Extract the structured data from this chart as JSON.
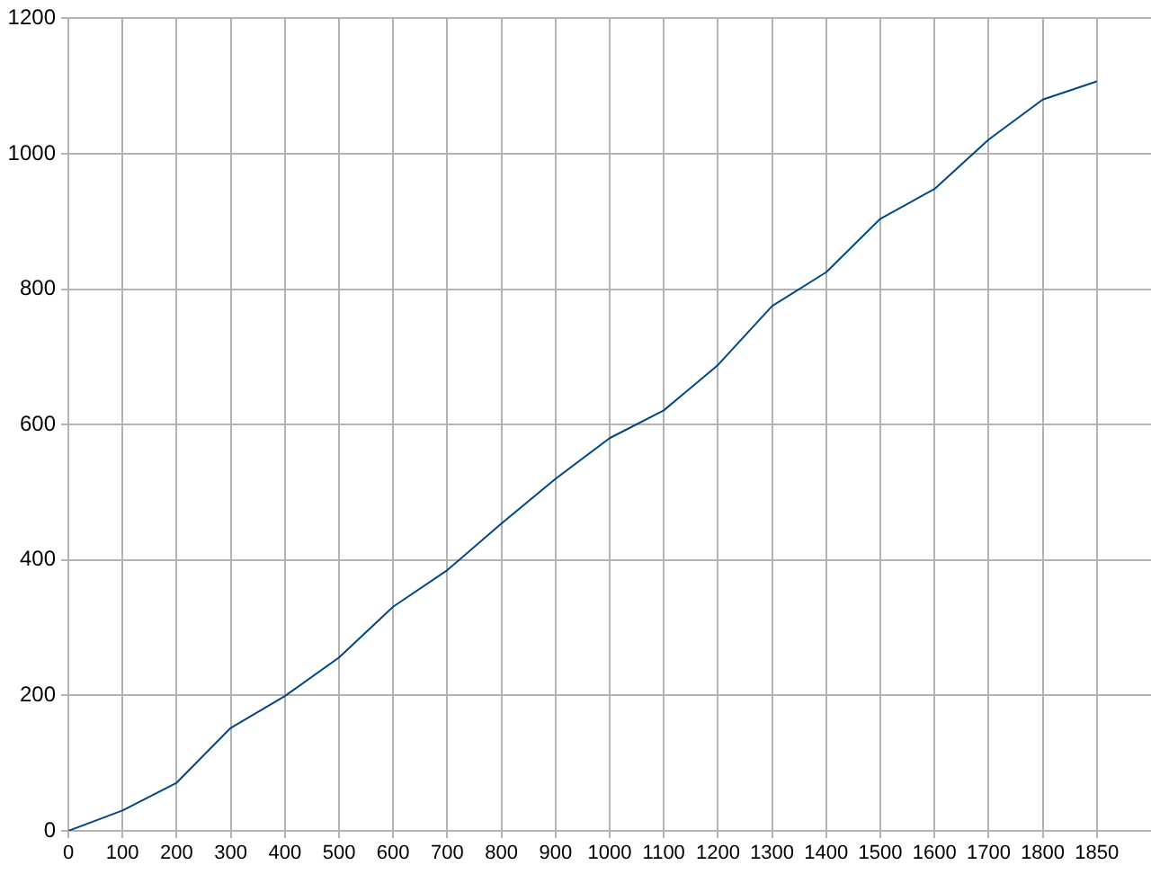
{
  "chart_data": {
    "type": "line",
    "categories": [
      "0",
      "100",
      "200",
      "300",
      "400",
      "500",
      "600",
      "700",
      "800",
      "900",
      "1000",
      "1100",
      "1200",
      "1300",
      "1400",
      "1500",
      "1600",
      "1700",
      "1800",
      "1850"
    ],
    "values": [
      0,
      30,
      71,
      152,
      199,
      256,
      331,
      385,
      454,
      520,
      580,
      621,
      688,
      775,
      825,
      904,
      948,
      1021,
      1080,
      1107
    ],
    "color": "#004586",
    "ylim": [
      0,
      1200
    ],
    "yticks": [
      0,
      200,
      400,
      600,
      800,
      1000,
      1200
    ],
    "grid": true,
    "marker": "none"
  }
}
